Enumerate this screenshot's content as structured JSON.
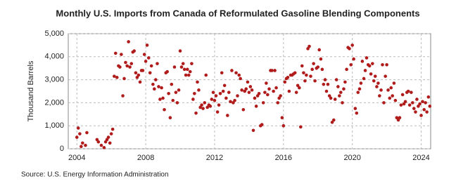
{
  "chart_data": {
    "type": "scatter",
    "title": "Monthly U.S. Imports from Canada of Reformulated Gasoline Blending Components",
    "y_label": "Thousand Barrels",
    "source": "Source: U.S. Energy Information Administration",
    "color": "#b01c1c",
    "grid": true,
    "xlim": [
      2003.5,
      2024.55
    ],
    "xticks": [
      2004,
      2008,
      2012,
      2016,
      2020,
      2024
    ],
    "ylim": [
      0,
      5000
    ],
    "yticks": [
      {
        "value": 0,
        "label": "0"
      },
      {
        "value": 1000,
        "label": "1,000"
      },
      {
        "value": 2000,
        "label": "2,000"
      },
      {
        "value": 3000,
        "label": "3,000"
      },
      {
        "value": 4000,
        "label": "4,000"
      },
      {
        "value": 5000,
        "label": "5,000"
      }
    ],
    "x": [
      2004.0,
      2004.08,
      2004.17,
      2004.25,
      2004.33,
      2004.5,
      2004.58,
      2005.17,
      2005.25,
      2005.42,
      2005.58,
      2005.67,
      2005.75,
      2005.83,
      2005.92,
      2006.0,
      2006.08,
      2006.17,
      2006.25,
      2006.33,
      2006.42,
      2006.5,
      2006.58,
      2006.67,
      2006.75,
      2006.83,
      2006.92,
      2007.0,
      2007.08,
      2007.17,
      2007.25,
      2007.33,
      2007.42,
      2007.5,
      2007.58,
      2007.67,
      2007.75,
      2007.83,
      2007.92,
      2008.0,
      2008.08,
      2008.17,
      2008.25,
      2008.33,
      2008.42,
      2008.5,
      2008.58,
      2008.67,
      2008.75,
      2008.83,
      2008.92,
      2009.0,
      2009.08,
      2009.17,
      2009.25,
      2009.33,
      2009.42,
      2009.5,
      2009.58,
      2009.67,
      2009.75,
      2009.83,
      2009.92,
      2010.0,
      2010.08,
      2010.17,
      2010.25,
      2010.33,
      2010.42,
      2010.5,
      2010.58,
      2010.67,
      2010.75,
      2010.83,
      2010.92,
      2011.0,
      2011.08,
      2011.17,
      2011.25,
      2011.33,
      2011.42,
      2011.5,
      2011.58,
      2011.67,
      2011.75,
      2011.83,
      2011.92,
      2012.0,
      2012.08,
      2012.17,
      2012.25,
      2012.33,
      2012.42,
      2012.5,
      2012.58,
      2012.67,
      2012.75,
      2012.83,
      2012.92,
      2013.0,
      2013.08,
      2013.17,
      2013.25,
      2013.33,
      2013.42,
      2013.5,
      2013.58,
      2013.67,
      2013.75,
      2013.83,
      2013.92,
      2014.0,
      2014.08,
      2014.17,
      2014.25,
      2014.33,
      2014.42,
      2014.5,
      2014.58,
      2014.67,
      2014.75,
      2014.83,
      2014.92,
      2015.0,
      2015.08,
      2015.17,
      2015.25,
      2015.33,
      2015.42,
      2015.5,
      2015.58,
      2015.67,
      2015.75,
      2015.83,
      2015.92,
      2016.0,
      2016.08,
      2016.17,
      2016.25,
      2016.33,
      2016.42,
      2016.5,
      2016.58,
      2016.67,
      2016.75,
      2016.83,
      2016.92,
      2017.0,
      2017.08,
      2017.17,
      2017.25,
      2017.33,
      2017.42,
      2017.5,
      2017.58,
      2017.67,
      2017.75,
      2017.83,
      2017.92,
      2018.0,
      2018.08,
      2018.17,
      2018.25,
      2018.33,
      2018.42,
      2018.5,
      2018.58,
      2018.67,
      2018.75,
      2018.83,
      2018.92,
      2019.0,
      2019.08,
      2019.17,
      2019.25,
      2019.33,
      2019.42,
      2019.5,
      2019.58,
      2019.67,
      2019.75,
      2019.83,
      2019.92,
      2020.0,
      2020.08,
      2020.17,
      2020.25,
      2020.33,
      2020.42,
      2020.5,
      2020.58,
      2020.67,
      2020.75,
      2020.83,
      2020.92,
      2021.0,
      2021.08,
      2021.17,
      2021.25,
      2021.33,
      2021.42,
      2021.5,
      2021.58,
      2021.67,
      2021.75,
      2021.83,
      2021.92,
      2022.0,
      2022.08,
      2022.17,
      2022.25,
      2022.33,
      2022.42,
      2022.5,
      2022.58,
      2022.67,
      2022.75,
      2022.83,
      2022.92,
      2023.0,
      2023.08,
      2023.17,
      2023.25,
      2023.33,
      2023.42,
      2023.5,
      2023.58,
      2023.67,
      2023.75,
      2023.83,
      2023.92,
      2024.0,
      2024.08,
      2024.17,
      2024.25,
      2024.33,
      2024.42,
      2024.5
    ],
    "values": [
      500,
      900,
      650,
      100,
      250,
      150,
      700,
      400,
      300,
      150,
      50,
      300,
      400,
      500,
      250,
      650,
      850,
      3150,
      4150,
      3100,
      3600,
      3550,
      4100,
      2300,
      3050,
      3750,
      3600,
      4650,
      3550,
      3700,
      4200,
      4250,
      3300,
      3100,
      3200,
      2900,
      3400,
      3400,
      4100,
      3800,
      4500,
      3950,
      3300,
      3600,
      2800,
      2600,
      3000,
      3700,
      2700,
      2150,
      2650,
      2200,
      1700,
      3300,
      3350,
      2400,
      1350,
      2800,
      2100,
      3550,
      2450,
      2000,
      2550,
      4250,
      3550,
      3700,
      3450,
      3200,
      3450,
      3200,
      3350,
      3700,
      2150,
      2400,
      1550,
      2900,
      2550,
      1800,
      1900,
      1750,
      2000,
      3200,
      1800,
      1900,
      1850,
      2150,
      2450,
      2100,
      2300,
      1600,
      1900,
      2400,
      3300,
      2500,
      2750,
      2200,
      1450,
      2450,
      2050,
      3400,
      2000,
      2100,
      3300,
      2300,
      3200,
      3050,
      2550,
      1700,
      2500,
      2600,
      2900,
      2450,
      2700,
      2550,
      800,
      2200,
      1850,
      2300,
      2400,
      1000,
      1050,
      2000,
      2450,
      2850,
      2350,
      2600,
      3400,
      3400,
      2500,
      3400,
      2650,
      2000,
      2200,
      2300,
      1350,
      1000,
      2900,
      3050,
      3100,
      2500,
      3200,
      3200,
      3250,
      3300,
      2450,
      2750,
      2650,
      950,
      3600,
      3300,
      2950,
      3200,
      4350,
      4450,
      3150,
      3450,
      3700,
      2950,
      3500,
      3550,
      4300,
      3900,
      3450,
      2800,
      3000,
      2500,
      2800,
      2300,
      2200,
      1150,
      1250,
      2150,
      3000,
      2700,
      2300,
      2450,
      2000,
      2600,
      2900,
      3450,
      4400,
      4350,
      3650,
      4500,
      3900,
      1750,
      1550,
      2450,
      2600,
      2850,
      3800,
      3050,
      3400,
      3950,
      3650,
      3600,
      3250,
      3700,
      2950,
      3150,
      2700,
      2850,
      2300,
      2550,
      3650,
      2000,
      3150,
      3650,
      2550,
      2200,
      2650,
      2300,
      2850,
      2100,
      1350,
      1250,
      1350,
      1900,
      2350,
      1950,
      2050,
      2450,
      2500,
      1900,
      2450,
      2000,
      1750,
      1600,
      2150,
      1850,
      1950,
      1450,
      2050,
      1700,
      2000,
      1600,
      2250,
      1850
    ]
  }
}
